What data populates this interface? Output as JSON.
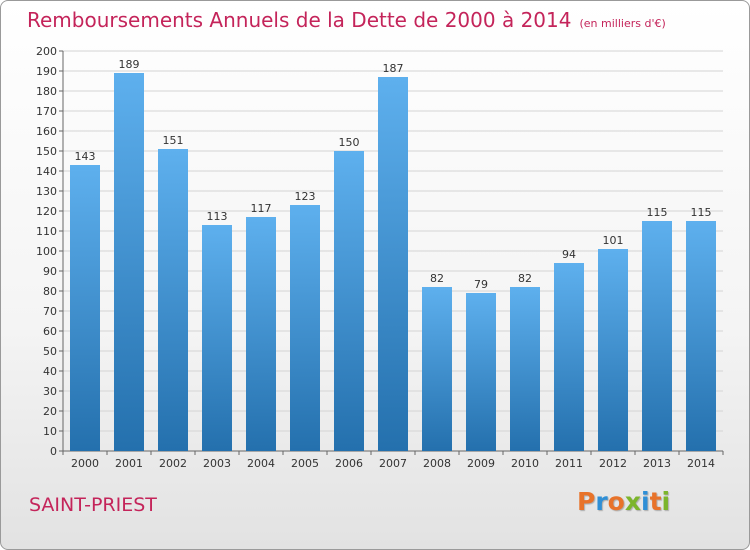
{
  "header": {
    "title": "Remboursements Annuels de la Dette de 2000 à 2014",
    "subtitle": "(en milliers d'€)"
  },
  "footer": {
    "commune": "SAINT-PRIEST",
    "logo_text": "Proxiti"
  },
  "colors": {
    "title": "#c4245a",
    "bar_light": "#5eb0ee",
    "bar_dark": "#2470ad",
    "grid": "#d4d4d4"
  },
  "chart_data": {
    "type": "bar",
    "title": "Remboursements Annuels de la Dette de 2000 à 2014",
    "subtitle": "(en milliers d'€)",
    "categories": [
      "2000",
      "2001",
      "2002",
      "2003",
      "2004",
      "2005",
      "2006",
      "2007",
      "2008",
      "2009",
      "2010",
      "2011",
      "2012",
      "2013",
      "2014"
    ],
    "values": [
      143,
      189,
      151,
      113,
      117,
      123,
      150,
      187,
      82,
      79,
      82,
      94,
      101,
      115,
      115
    ],
    "ylim": [
      0,
      200
    ],
    "y_ticks": [
      0,
      10,
      20,
      30,
      40,
      50,
      60,
      70,
      80,
      90,
      100,
      110,
      120,
      130,
      140,
      150,
      160,
      170,
      180,
      190,
      200
    ],
    "grid": true,
    "data_labels": true,
    "xlabel": "",
    "ylabel": ""
  }
}
